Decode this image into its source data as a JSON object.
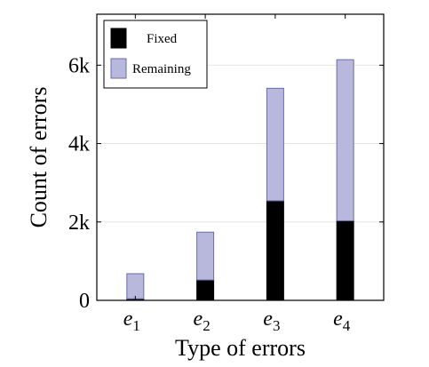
{
  "chart_data": {
    "type": "bar",
    "stacked": true,
    "categories": [
      {
        "base": "e",
        "sub": "1"
      },
      {
        "base": "e",
        "sub": "2"
      },
      {
        "base": "e",
        "sub": "3"
      },
      {
        "base": "e",
        "sub": "4"
      }
    ],
    "series": [
      {
        "name": "Fixed",
        "color": "#000000",
        "values": [
          40,
          520,
          2540,
          2030
        ]
      },
      {
        "name": "Remaining",
        "color": "#b8b8dc",
        "values": [
          640,
          1220,
          2870,
          4110
        ]
      }
    ],
    "title": "",
    "xlabel": "Type of errors",
    "ylabel": "Count of errors",
    "ylim": [
      0,
      7300
    ],
    "yticks": [
      {
        "value": 0,
        "label": "0"
      },
      {
        "value": 2000,
        "label": "2k"
      },
      {
        "value": 4000,
        "label": "4k"
      },
      {
        "value": 6000,
        "label": "6k"
      }
    ],
    "grid": true,
    "legend_position": "top-left"
  }
}
